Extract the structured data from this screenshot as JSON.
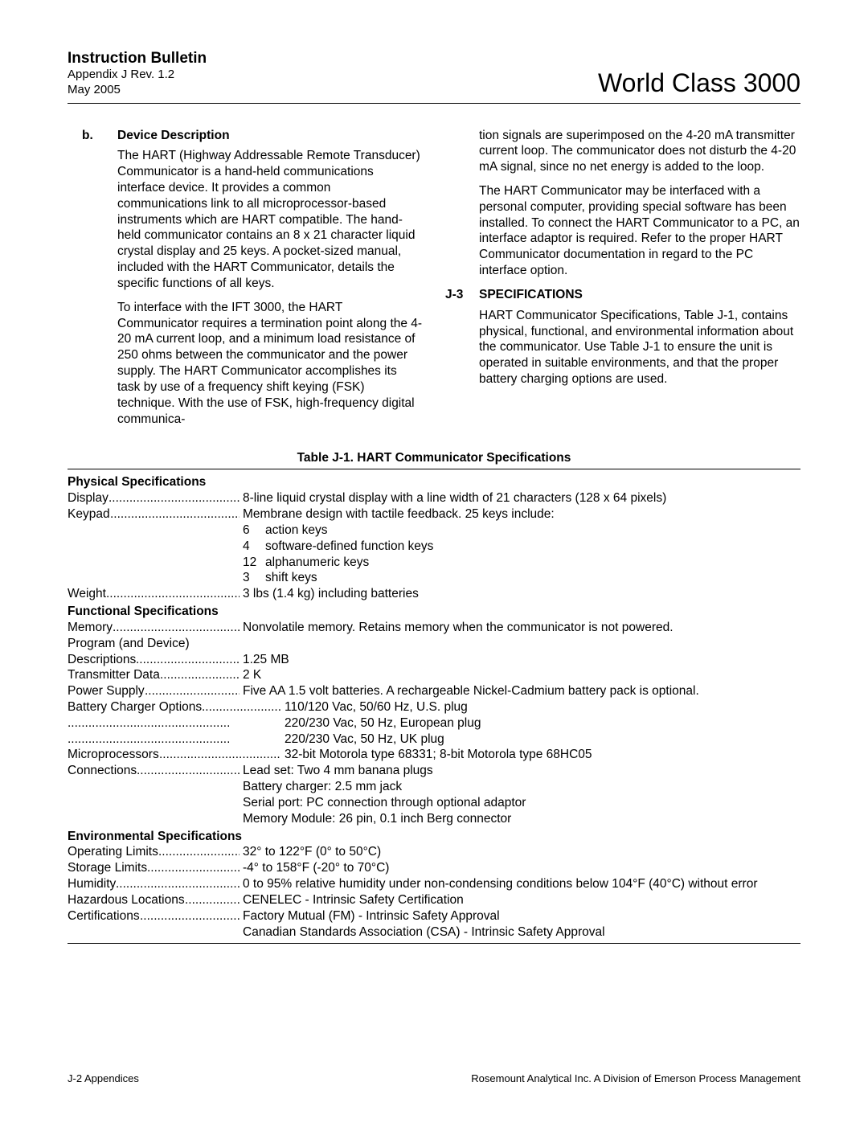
{
  "header": {
    "title": "Instruction Bulletin",
    "appendix": "Appendix J  Rev. 1.2",
    "date": "May 2005",
    "product": "World Class 3000"
  },
  "section_b": {
    "label": "b.",
    "title": "Device Description",
    "p1": "The HART (Highway Addressable Remote Transducer) Communicator is a hand-held communications interface device. It provides a common communications link to all microprocessor-based instruments which are HART compatible. The hand-held communicator contains an 8 x 21 character liquid crystal display and 25 keys. A pocket-sized manual, included with the HART Communicator, details the specific functions of all keys.",
    "p2": "To interface with the IFT 3000, the HART Communicator requires a termination point along the 4-20 mA current loop, and a minimum load resistance of 250 ohms between the communicator and the power supply. The HART Communicator accomplishes its task by use of a frequency shift keying (FSK) technique. With the use of FSK, high-frequency digital communica-",
    "p3": "tion signals are superimposed on the 4-20 mA transmitter current loop. The communicator does not disturb the 4-20 mA signal, since no net energy is added to the loop.",
    "p4": "The HART Communicator may be interfaced with a personal computer, providing special software has been installed. To connect the HART Communicator to a PC, an interface adaptor is required. Refer to the proper HART Communicator documentation in regard to the PC interface option."
  },
  "section_j3": {
    "num": "J-3",
    "title": "SPECIFICATIONS",
    "p1": "HART Communicator Specifications, Table J-1, contains physical, functional, and environmental information about the communicator. Use Table J-1 to ensure the unit is operated in suitable environments, and that the proper battery charging options are used."
  },
  "table": {
    "caption": "Table J-1.  HART Communicator Specifications",
    "physical": {
      "title": "Physical Specifications",
      "display_label": "Display",
      "display_val": "8-line liquid crystal display with a line width of 21 characters (128 x 64 pixels)",
      "keypad_label": "Keypad",
      "keypad_val": "Membrane design with tactile feedback. 25 keys include:",
      "keys": [
        {
          "n": "6",
          "t": "action keys"
        },
        {
          "n": "4",
          "t": "software-defined function keys"
        },
        {
          "n": "12",
          "t": "alphanumeric keys"
        },
        {
          "n": "3",
          "t": "shift keys"
        }
      ],
      "weight_label": "Weight",
      "weight_val": " 3 lbs (1.4 kg) including batteries"
    },
    "functional": {
      "title": "Functional Specifications",
      "memory_label": "Memory",
      "memory_val": "Nonvolatile memory. Retains memory when the communicator is not powered.",
      "program_label": "Program (and Device)",
      "desc_label": "Descriptions",
      "desc_val": "1.25 MB",
      "trans_label": "Transmitter Data",
      "trans_val": "2 K",
      "power_label": "Power Supply",
      "power_val": "Five AA 1.5 volt batteries. A rechargeable Nickel-Cadmium battery pack is optional.",
      "batt_label": "Battery Charger Options",
      "batt_val": "110/120 Vac, 50/60 Hz, U.S. plug",
      "batt_val2": "220/230 Vac, 50 Hz, European plug",
      "batt_val3": "220/230 Vac, 50 Hz, UK plug",
      "micro_label": "Microprocessors",
      "micro_val": "32-bit Motorola type 68331; 8-bit Motorola type 68HC05",
      "conn_label": "Connections",
      "conn_val": "Lead set: Two 4 mm banana plugs",
      "conn_val2": "Battery charger: 2.5 mm jack",
      "conn_val3": "Serial port: PC connection through optional adaptor",
      "conn_val4": "Memory Module: 26 pin, 0.1 inch Berg connector"
    },
    "env": {
      "title": "Environmental Specifications",
      "op_label": "Operating Limits",
      "op_val": "32° to 122°F (0° to 50°C)",
      "st_label": "Storage Limits",
      "st_val": "-4° to 158°F (-20° to 70°C)",
      "hum_label": "Humidity",
      "hum_val": "0 to 95% relative humidity under non-condensing conditions below 104°F (40°C) without error",
      "haz_label": "Hazardous Locations",
      "haz_val": "CENELEC - Intrinsic Safety Certification",
      "cert_label": "Certifications",
      "cert_val": "Factory Mutual (FM) - Intrinsic Safety Approval",
      "cert_val2": "Canadian Standards Association (CSA) - Intrinsic Safety Approval"
    }
  },
  "footer": {
    "left": "J-2    Appendices",
    "right": "Rosemount Analytical Inc.    A Division of Emerson Process Management"
  },
  "dots": "..............................................."
}
